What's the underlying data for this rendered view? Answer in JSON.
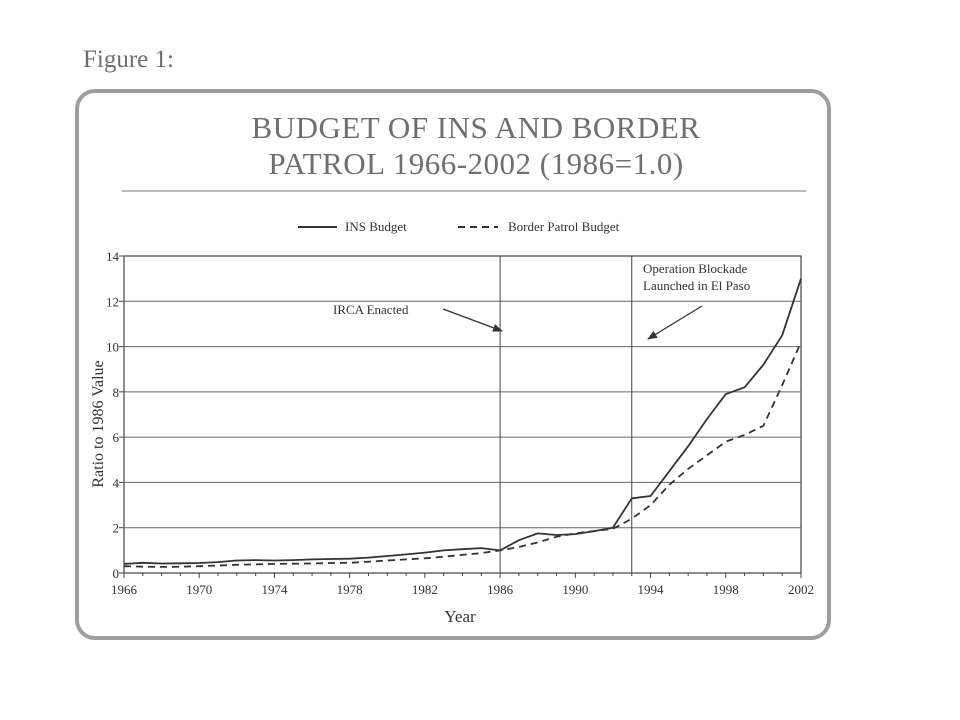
{
  "figure_label": "Figure 1:",
  "chart_data": {
    "type": "line",
    "title_line1": "BUDGET OF INS AND BORDER",
    "title_line2": "PATROL 1966-2002 (1986=1.0)",
    "xlabel": "Year",
    "ylabel": "Ratio  to 1986 Value",
    "xlim": [
      1966,
      2002
    ],
    "ylim": [
      0,
      14
    ],
    "x_ticks": [
      1966,
      1970,
      1974,
      1978,
      1982,
      1986,
      1990,
      1994,
      1998,
      2002
    ],
    "y_ticks": [
      0,
      2,
      4,
      6,
      8,
      10,
      12,
      14
    ],
    "grid": "horizontal",
    "legend_position": "top",
    "series": [
      {
        "name": "INS Budget",
        "style": "solid",
        "color": "#333333",
        "x": [
          1966,
          1967,
          1968,
          1969,
          1970,
          1971,
          1972,
          1973,
          1974,
          1975,
          1976,
          1977,
          1978,
          1979,
          1980,
          1981,
          1982,
          1983,
          1984,
          1985,
          1986,
          1987,
          1988,
          1989,
          1990,
          1991,
          1992,
          1993,
          1994,
          1995,
          1996,
          1997,
          1998,
          1999,
          2000,
          2001,
          2002
        ],
        "values": [
          0.4,
          0.45,
          0.42,
          0.43,
          0.44,
          0.48,
          0.55,
          0.57,
          0.55,
          0.57,
          0.6,
          0.62,
          0.63,
          0.68,
          0.75,
          0.82,
          0.9,
          1.0,
          1.05,
          1.1,
          1.0,
          1.45,
          1.75,
          1.68,
          1.72,
          1.85,
          2.0,
          3.3,
          3.4,
          4.5,
          5.6,
          6.8,
          7.9,
          8.2,
          9.2,
          10.5,
          13.0
        ]
      },
      {
        "name": "Border Patrol Budget",
        "style": "dashed",
        "color": "#333333",
        "x": [
          1966,
          1967,
          1968,
          1969,
          1970,
          1971,
          1972,
          1973,
          1974,
          1975,
          1976,
          1977,
          1978,
          1979,
          1980,
          1981,
          1982,
          1983,
          1984,
          1985,
          1986,
          1987,
          1988,
          1989,
          1990,
          1991,
          1992,
          1993,
          1994,
          1995,
          1996,
          1997,
          1998,
          1999,
          2000,
          2001,
          2002
        ],
        "values": [
          0.3,
          0.28,
          0.27,
          0.28,
          0.3,
          0.33,
          0.36,
          0.38,
          0.4,
          0.41,
          0.42,
          0.44,
          0.45,
          0.5,
          0.55,
          0.6,
          0.65,
          0.72,
          0.8,
          0.88,
          1.0,
          1.15,
          1.35,
          1.6,
          1.75,
          1.85,
          1.95,
          2.4,
          3.0,
          3.9,
          4.6,
          5.2,
          5.8,
          6.1,
          6.5,
          8.3,
          10.2
        ]
      }
    ],
    "vertical_markers": [
      1986,
      1993
    ],
    "annotations": [
      {
        "text": "IRCA Enacted"
      },
      {
        "line1": "Operation Blockade",
        "line2": "Launched in El Paso"
      }
    ]
  }
}
